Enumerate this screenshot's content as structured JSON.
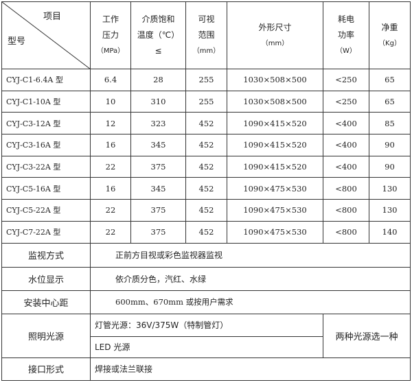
{
  "header": {
    "corner_top": "项目",
    "corner_bottom": "型号",
    "columns": [
      {
        "l1": "工作",
        "l2": "压力",
        "l3": "（MPa）"
      },
      {
        "l1": "介质饱和",
        "l2": "温度（℃）",
        "l3": "≤"
      },
      {
        "l1": "可视",
        "l2": "范围",
        "l3": "（mm）"
      },
      {
        "l1": "外形尺寸",
        "l2": "（mm）",
        "l3": ""
      },
      {
        "l1": "耗电",
        "l2": "功率",
        "l3": "（W）"
      },
      {
        "l1": "净重",
        "l2": "（Kg）",
        "l3": ""
      }
    ]
  },
  "rows": [
    {
      "model": "CYJ-C1-6.4A 型",
      "pressure": "6.4",
      "temp": "28",
      "range": "255",
      "size": "1030×508×500",
      "power": "<250",
      "weight": "65"
    },
    {
      "model": "CYJ-C1-10A 型",
      "pressure": "10",
      "temp": "310",
      "range": "255",
      "size": "1030×508×500",
      "power": "<250",
      "weight": "65"
    },
    {
      "model": "CYJ-C3-12A 型",
      "pressure": "12",
      "temp": "323",
      "range": "452",
      "size": "1090×415×520",
      "power": "<400",
      "weight": "85"
    },
    {
      "model": "CYJ-C3-16A 型",
      "pressure": "16",
      "temp": "345",
      "range": "452",
      "size": "1090×415×520",
      "power": "<400",
      "weight": "90"
    },
    {
      "model": "CYJ-C3-22A 型",
      "pressure": "22",
      "temp": "375",
      "range": "452",
      "size": "1090×415×520",
      "power": "<400",
      "weight": "90"
    },
    {
      "model": "CYJ-C5-16A 型",
      "pressure": "16",
      "temp": "345",
      "range": "452",
      "size": "1090×475×530",
      "power": "<800",
      "weight": "130"
    },
    {
      "model": "CYJ-C5-22A 型",
      "pressure": "22",
      "temp": "375",
      "range": "452",
      "size": "1090×475×530",
      "power": "<800",
      "weight": "130"
    },
    {
      "model": "CYJ-C7-22A 型",
      "pressure": "22",
      "temp": "375",
      "range": "452",
      "size": "1090×475×530",
      "power": "<800",
      "weight": "140"
    }
  ],
  "specs": {
    "monitor_label": "监视方式",
    "monitor_value": "正前方目视或彩色监视器监视",
    "level_label": "水位显示",
    "level_value": "依介质分色，汽红、水绿",
    "center_label": "安装中心距",
    "center_value": "600mm、670mm 或按用户需求",
    "light_label": "照明光源",
    "light_opt1": "灯管光源：36V/375W（特制管灯）",
    "light_opt2": "LED 光源",
    "light_note": "两种光源选一种",
    "port_label": "接口形式",
    "port_value": "焊接或法兰联接"
  }
}
